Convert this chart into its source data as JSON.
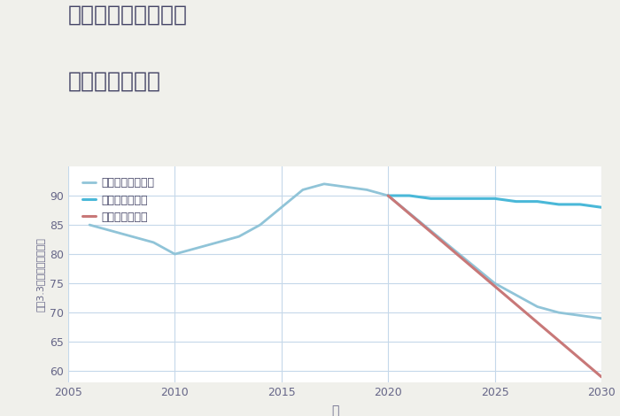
{
  "title_line1": "兵庫県西宮市東町の",
  "title_line2": "土地の価格推移",
  "xlabel": "年",
  "ylabel": "平（3.3㎡）単価（万円）",
  "background_color": "#f0f0eb",
  "plot_bg_color": "#ffffff",
  "grid_color": "#c5d8ea",
  "good_scenario": {
    "label": "グッドシナリオ",
    "color": "#4ab8d8",
    "linewidth": 2.2,
    "years": [
      2020,
      2021,
      2022,
      2023,
      2024,
      2025,
      2026,
      2027,
      2028,
      2029,
      2030
    ],
    "values": [
      90,
      90,
      89.5,
      89.5,
      89.5,
      89.5,
      89,
      89,
      88.5,
      88.5,
      88
    ]
  },
  "bad_scenario": {
    "label": "バッドシナリオ",
    "color": "#c87878",
    "linewidth": 2.2,
    "years": [
      2020,
      2030
    ],
    "values": [
      90,
      59
    ]
  },
  "normal_scenario": {
    "label": "ノーマルシナリオ",
    "color": "#90c4d8",
    "linewidth": 2.0,
    "years": [
      2006,
      2007,
      2008,
      2009,
      2010,
      2011,
      2012,
      2013,
      2014,
      2015,
      2016,
      2017,
      2018,
      2019,
      2020,
      2021,
      2022,
      2023,
      2024,
      2025,
      2026,
      2027,
      2028,
      2029,
      2030
    ],
    "values": [
      85,
      84,
      83,
      82,
      80,
      81,
      82,
      83,
      85,
      88,
      91,
      92,
      91.5,
      91,
      90,
      87,
      84,
      81,
      78,
      75,
      73,
      71,
      70,
      69.5,
      69
    ]
  },
  "xlim": [
    2005,
    2030
  ],
  "ylim": [
    58,
    95
  ],
  "yticks": [
    60,
    65,
    70,
    75,
    80,
    85,
    90
  ],
  "xticks": [
    2005,
    2010,
    2015,
    2020,
    2025,
    2030
  ],
  "title_color": "#444466",
  "tick_color": "#666688",
  "label_color": "#666688",
  "title_fontsize": 18,
  "axis_label_fontsize": 10,
  "tick_fontsize": 9,
  "legend_fontsize": 9
}
